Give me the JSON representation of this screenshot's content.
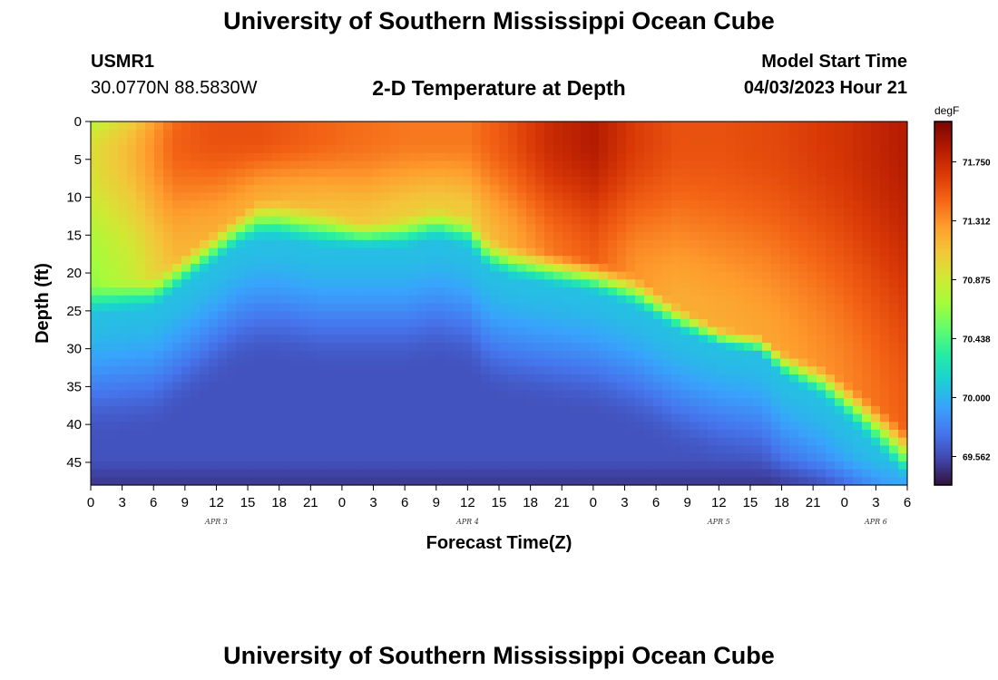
{
  "header": {
    "main_title": "University of Southern Mississippi Ocean Cube",
    "station_id": "USMR1",
    "station_coords": "30.0770N  88.5830W",
    "chart_title": "2-D Temperature at Depth",
    "start_label": "Model Start Time",
    "start_value": "04/03/2023 Hour 21"
  },
  "footer": {
    "repeat_title": "University of Southern Mississippi Ocean Cube"
  },
  "chart_data": {
    "type": "heatmap",
    "title": "2-D Temperature at Depth",
    "xlabel": "Forecast Time(Z)",
    "ylabel": "Depth (ft)",
    "x_range_hours": [
      0,
      78
    ],
    "y_range_ft": [
      0,
      48
    ],
    "x_tick_hours": [
      0,
      3,
      6,
      9,
      12,
      15,
      18,
      21,
      24,
      27,
      30,
      33,
      36,
      39,
      42,
      45,
      48,
      51,
      54,
      57,
      60,
      63,
      66,
      69,
      72,
      75,
      78
    ],
    "x_tick_labels": [
      "0",
      "3",
      "6",
      "9",
      "12",
      "15",
      "18",
      "21",
      "0",
      "3",
      "6",
      "9",
      "12",
      "15",
      "18",
      "21",
      "0",
      "3",
      "6",
      "9",
      "12",
      "15",
      "18",
      "21",
      "0",
      "3",
      "6"
    ],
    "day_labels": [
      {
        "label": "APR 3",
        "hour": 12
      },
      {
        "label": "APR 4",
        "hour": 36
      },
      {
        "label": "APR 5",
        "hour": 60
      },
      {
        "label": "APR 6",
        "hour": 75
      }
    ],
    "y_ticks": [
      0,
      5,
      10,
      15,
      20,
      25,
      30,
      35,
      40,
      45
    ],
    "y_tick_labels": [
      "0",
      "5",
      "10",
      "15",
      "20",
      "25",
      "30",
      "35",
      "40",
      "45"
    ],
    "colorbar": {
      "unit": "degF",
      "range": [
        69.35,
        72.05
      ],
      "ticks": [
        71.75,
        71.312,
        70.875,
        70.438,
        70.0,
        69.562
      ],
      "tick_labels": [
        "71.750",
        "71.312",
        "70.875",
        "70.438",
        "70.000",
        "69.562"
      ],
      "colors": [
        "#30123b",
        "#4145ab",
        "#4675ed",
        "#39a2fc",
        "#1bcfd4",
        "#24eca6",
        "#61fc6c",
        "#a4fc3b",
        "#d1e834",
        "#f3c63a",
        "#fe9b2d",
        "#f36315",
        "#d93806",
        "#b11901",
        "#7a0402"
      ]
    },
    "series": [
      {
        "name": "thermocline_top_ft",
        "hours": [
          0,
          6,
          10,
          14,
          16,
          18,
          22,
          26,
          30,
          33,
          36,
          38,
          40,
          44,
          48,
          52,
          56,
          60,
          64,
          66,
          70,
          74,
          78
        ],
        "values": [
          21,
          20,
          16,
          12,
          10,
          10,
          11,
          13,
          12,
          11,
          12,
          15,
          16,
          17,
          18,
          20,
          24,
          27,
          28,
          30,
          32,
          36,
          40
        ]
      },
      {
        "name": "thermocline_bottom_ft",
        "hours": [
          0,
          6,
          10,
          14,
          16,
          18,
          22,
          26,
          30,
          33,
          36,
          38,
          40,
          44,
          48,
          52,
          56,
          60,
          64,
          66,
          70,
          74,
          78
        ],
        "values": [
          26,
          25,
          21,
          17,
          16,
          16,
          17,
          17,
          17,
          16,
          17,
          20,
          21,
          22,
          23,
          25,
          28,
          30,
          31,
          34,
          37,
          42,
          48
        ]
      },
      {
        "name": "surface_max_temp_degF",
        "hours": [
          0,
          4,
          8,
          12,
          16,
          20,
          24,
          30,
          36,
          40,
          44,
          48,
          52,
          56,
          60,
          66,
          72,
          78
        ],
        "values": [
          71.0,
          71.2,
          71.5,
          71.55,
          71.55,
          71.5,
          71.45,
          71.4,
          71.4,
          71.55,
          71.75,
          71.85,
          71.65,
          71.55,
          71.55,
          71.6,
          71.7,
          71.85
        ]
      }
    ]
  }
}
